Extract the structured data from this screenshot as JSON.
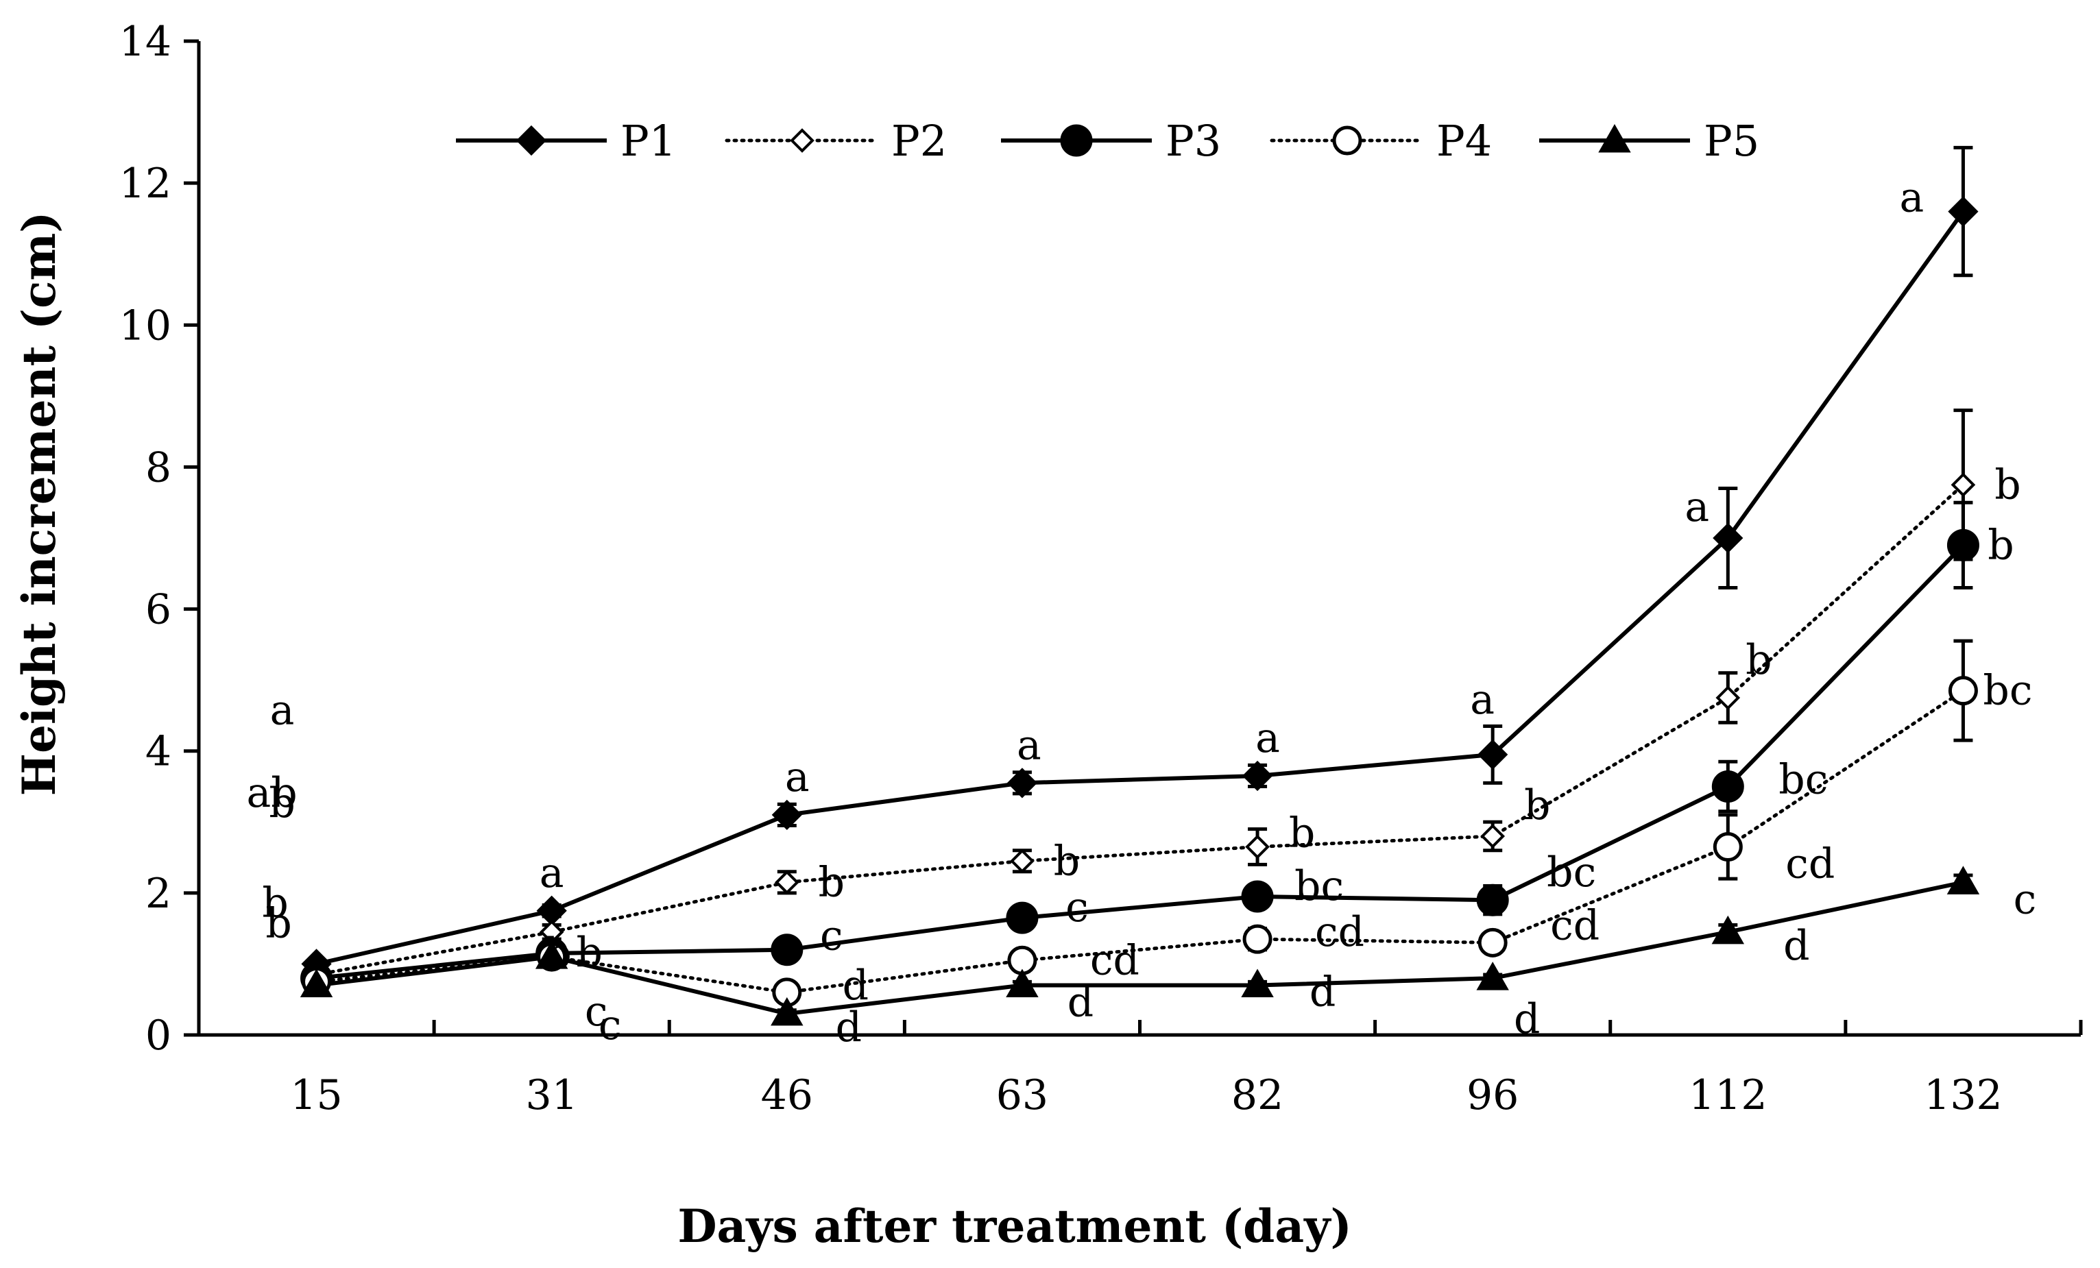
{
  "chart_data": {
    "type": "line",
    "title": "",
    "xlabel": "Days after treatment (day)",
    "ylabel": "Height increment (cm)",
    "categories": [
      "15",
      "31",
      "46",
      "63",
      "82",
      "96",
      "112",
      "132"
    ],
    "ylim": [
      0,
      14
    ],
    "yticks": [
      0,
      2,
      4,
      6,
      8,
      10,
      12,
      14
    ],
    "grid": false,
    "legend_position": "top",
    "series": [
      {
        "name": "P1",
        "line": "solid",
        "marker": "diamond-filled",
        "values": [
          1.0,
          1.75,
          3.1,
          3.55,
          3.65,
          3.95,
          7.0,
          11.6
        ],
        "errors": [
          0.05,
          0.08,
          0.15,
          0.15,
          0.15,
          0.4,
          0.7,
          0.9
        ],
        "letters": [
          "a",
          "a",
          "a",
          "a",
          "a",
          "a",
          "a",
          "a"
        ]
      },
      {
        "name": "P2",
        "line": "dotted",
        "marker": "diamond-open",
        "values": [
          0.85,
          1.45,
          2.15,
          2.45,
          2.65,
          2.8,
          4.75,
          7.75
        ],
        "errors": [
          0.05,
          0.1,
          0.15,
          0.15,
          0.25,
          0.2,
          0.35,
          1.05
        ],
        "letters": [
          "b",
          "b",
          "b",
          "b",
          "b",
          "b",
          "b",
          "b"
        ]
      },
      {
        "name": "P3",
        "line": "solid",
        "marker": "circle-filled",
        "values": [
          0.8,
          1.15,
          1.2,
          1.65,
          1.95,
          1.9,
          3.5,
          6.9
        ],
        "errors": [
          0.05,
          0.05,
          0.05,
          0.1,
          0.15,
          0.2,
          0.35,
          0.6
        ],
        "letters": [
          "ab",
          "b",
          "c",
          "c",
          "bc",
          "bc",
          "bc",
          "b"
        ]
      },
      {
        "name": "P4",
        "line": "dotted",
        "marker": "circle-open",
        "values": [
          0.75,
          1.1,
          0.6,
          1.05,
          1.35,
          1.3,
          2.65,
          4.85
        ],
        "errors": [
          0.05,
          0.05,
          0.05,
          0.1,
          0.15,
          0.1,
          0.45,
          0.7
        ],
        "letters": [
          "b",
          "c",
          "d",
          "cd",
          "cd",
          "cd",
          "cd",
          "bc"
        ]
      },
      {
        "name": "P5",
        "line": "solid",
        "marker": "triangle-filled",
        "values": [
          0.7,
          1.1,
          0.3,
          0.7,
          0.7,
          0.8,
          1.45,
          2.15
        ],
        "errors": [
          0.03,
          0.05,
          0.05,
          0.05,
          0.05,
          0.05,
          0.1,
          0.1
        ],
        "letters": [
          "b",
          "c",
          "d",
          "d",
          "d",
          "d",
          "d",
          "c"
        ]
      }
    ]
  }
}
